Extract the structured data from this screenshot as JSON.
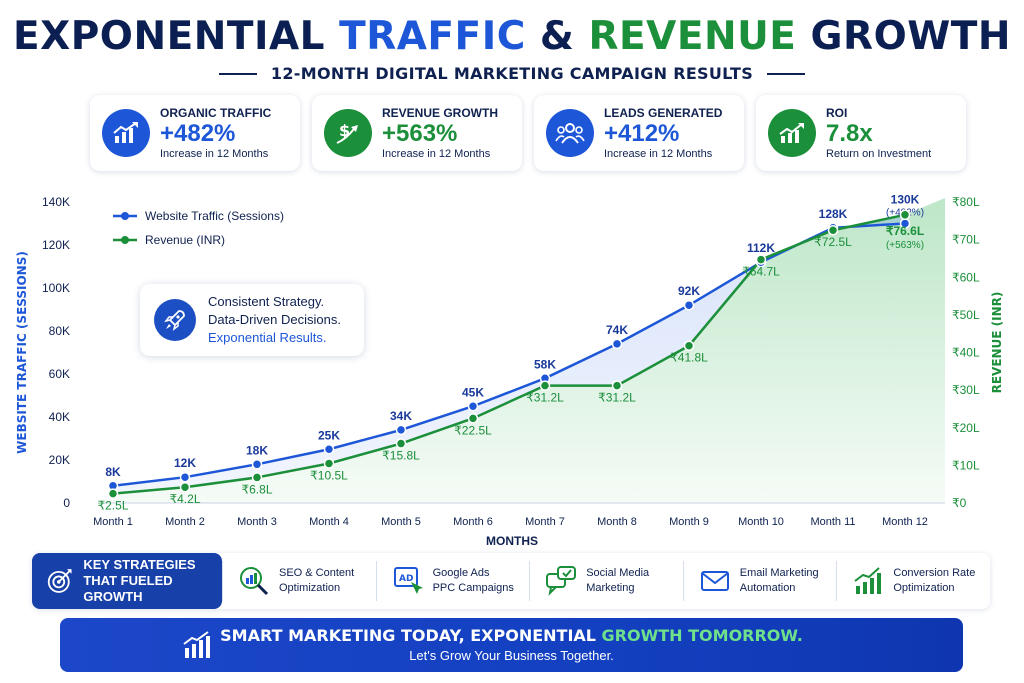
{
  "title": {
    "part1": "EXPONENTIAL",
    "part2": "TRAFFIC",
    "part3": "&",
    "part4": "REVENUE",
    "part5": "GROWTH"
  },
  "subtitle": "12-MONTH DIGITAL MARKETING CAMPAIGN RESULTS",
  "kpis": [
    {
      "label": "ORGANIC TRAFFIC",
      "value": "+482%",
      "sub": "Increase in 12 Months",
      "icon": "bar-chart-up-icon",
      "color": "#1d57d8"
    },
    {
      "label": "REVENUE GROWTH",
      "value": "+563%",
      "sub": "Increase in 12 Months",
      "icon": "dollar-growth-icon",
      "color": "#1b8f3a"
    },
    {
      "label": "LEADS GENERATED",
      "value": "+412%",
      "sub": "Increase in 12 Months",
      "icon": "people-group-icon",
      "color": "#1d57d8"
    },
    {
      "label": "ROI",
      "value": "7.8x",
      "sub": "Return on Investment",
      "icon": "growth-chart-icon",
      "color": "#1b8f3a"
    }
  ],
  "callout": {
    "line1": "Consistent Strategy.",
    "line2": "Data-Driven Decisions.",
    "line3": "Exponential Results."
  },
  "chart_data": {
    "type": "line",
    "categories": [
      "Month 1",
      "Month 2",
      "Month 3",
      "Month 4",
      "Month 5",
      "Month 6",
      "Month 7",
      "Month 8",
      "Month 9",
      "Month 10",
      "Month 11",
      "Month 12"
    ],
    "xlabel": "MONTHS",
    "ylabel_left": "WEBSITE TRAFFIC (SESSIONS)",
    "ylabel_right": "REVENUE (INR)",
    "ylim_left": [
      0,
      140000
    ],
    "ylim_right": [
      0,
      80
    ],
    "left_ticks": [
      "0",
      "20K",
      "40K",
      "60K",
      "80K",
      "100K",
      "120K",
      "140K"
    ],
    "right_ticks": [
      "₹0",
      "₹10L",
      "₹20L",
      "₹30L",
      "₹40L",
      "₹50L",
      "₹60L",
      "₹70L",
      "₹80L"
    ],
    "legend_position": "top-left",
    "series": [
      {
        "name": "Website Traffic (Sessions)",
        "axis": "left",
        "color": "#1d57d8",
        "values": [
          8000,
          12000,
          18000,
          25000,
          34000,
          45000,
          58000,
          74000,
          92000,
          112000,
          128000,
          130000
        ],
        "labels": [
          "8K",
          "12K",
          "18K",
          "25K",
          "34K",
          "45K",
          "58K",
          "74K",
          "92K",
          "112K",
          "128K",
          "130K"
        ],
        "last_note": "(+482%)"
      },
      {
        "name": "Revenue (INR)",
        "axis": "right",
        "color": "#1b8f3a",
        "values": [
          2.5,
          4.2,
          6.8,
          10.5,
          15.8,
          22.5,
          31.2,
          31.2,
          41.8,
          64.7,
          72.5,
          76.6
        ],
        "labels": [
          "₹2.5L",
          "₹4.2L",
          "₹6.8L",
          "₹10.5L",
          "₹15.8L",
          "₹22.5L",
          "₹31.2L",
          "₹31.2L",
          "₹41.8L",
          "₹64.7L",
          "₹72.5L",
          "₹76.6L"
        ],
        "last_note": "(+563%)"
      }
    ]
  },
  "strategies": {
    "heading_line1": "KEY STRATEGIES",
    "heading_line2": "THAT FUELED GROWTH",
    "items": [
      {
        "line1": "SEO & Content",
        "line2": "Optimization",
        "icon": "magnifier-chart-icon"
      },
      {
        "line1": "Google Ads",
        "line2": "PPC Campaigns",
        "icon": "ad-board-icon"
      },
      {
        "line1": "Social Media",
        "line2": "Marketing",
        "icon": "chat-bubbles-icon"
      },
      {
        "line1": "Email Marketing",
        "line2": "Automation",
        "icon": "envelope-icon"
      },
      {
        "line1": "Conversion Rate",
        "line2": "Optimization",
        "icon": "bar-chart-icon"
      }
    ]
  },
  "banner": {
    "line1_a": "SMART MARKETING TODAY, EXPONENTIAL",
    "line1_b": "GROWTH TOMORROW.",
    "line2": "Let's Grow Your Business Together."
  },
  "colors": {
    "blue": "#1d57d8",
    "green": "#1b8f3a",
    "navy": "#0f2150"
  }
}
